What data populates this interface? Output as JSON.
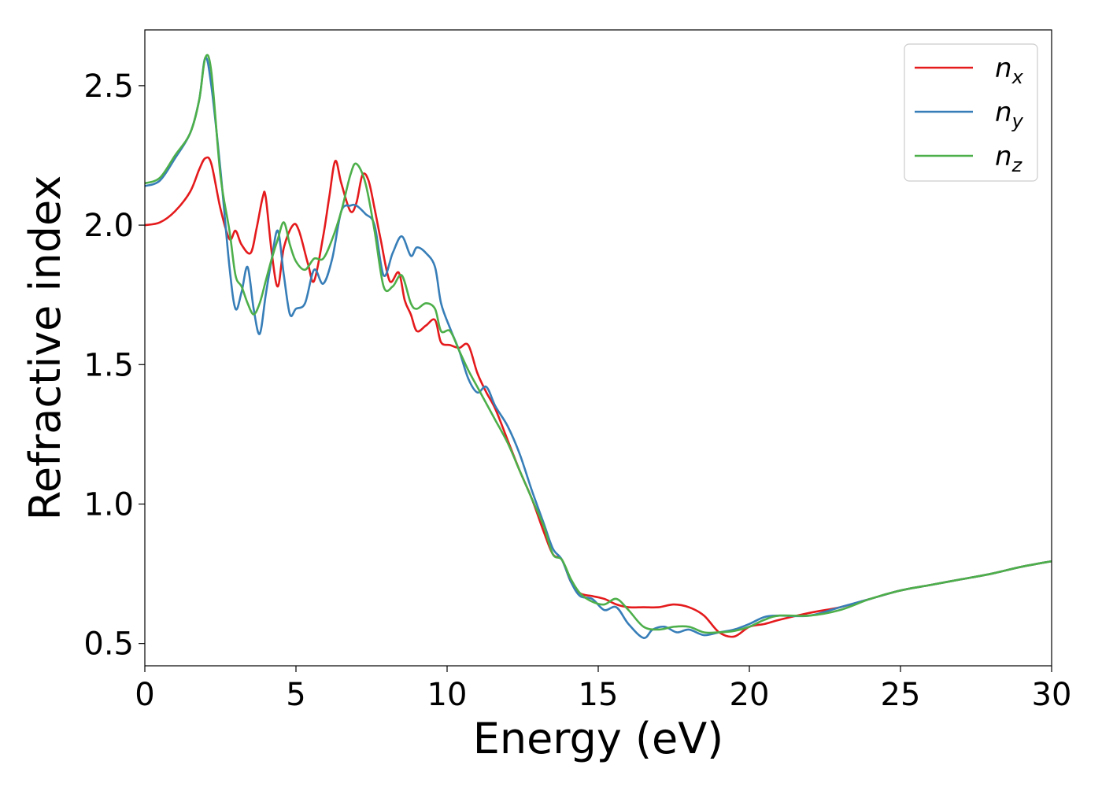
{
  "chart_data": {
    "type": "line",
    "xlabel": "Energy (eV)",
    "ylabel": "Refractive index",
    "xlim": [
      0,
      30
    ],
    "ylim": [
      0.42,
      2.7
    ],
    "xticks": [
      0,
      5,
      10,
      15,
      20,
      25,
      30
    ],
    "yticks": [
      0.5,
      1.0,
      1.5,
      2.0,
      2.5
    ],
    "xtick_labels": [
      "0",
      "5",
      "10",
      "15",
      "20",
      "25",
      "30"
    ],
    "ytick_labels": [
      "0.5",
      "1.0",
      "1.5",
      "2.0",
      "2.5"
    ],
    "grid": false,
    "legend_position": "top-right",
    "series": [
      {
        "name": "n",
        "subscript": "x",
        "color": "#e41a1c",
        "x": [
          0,
          0.5,
          1.0,
          1.5,
          1.8,
          2.0,
          2.2,
          2.5,
          2.8,
          3.0,
          3.2,
          3.5,
          3.7,
          3.9,
          4.0,
          4.2,
          4.4,
          4.6,
          4.9,
          5.1,
          5.4,
          5.6,
          5.9,
          6.1,
          6.3,
          6.5,
          6.8,
          7.0,
          7.2,
          7.4,
          7.6,
          7.8,
          8.1,
          8.4,
          8.6,
          8.8,
          9.0,
          9.3,
          9.6,
          9.8,
          10.1,
          10.4,
          10.7,
          11.0,
          11.3,
          11.6,
          12.0,
          12.4,
          12.8,
          13.2,
          13.5,
          13.8,
          14.1,
          14.4,
          14.8,
          15.2,
          15.6,
          16.0,
          16.5,
          17.0,
          17.5,
          18.0,
          18.5,
          19.0,
          19.5,
          20.0,
          20.5,
          21.0,
          22.0,
          23.0,
          24.0,
          25.0,
          26.0,
          27.0,
          28.0,
          29.0,
          30.0
        ],
        "values": [
          2.0,
          2.01,
          2.05,
          2.12,
          2.2,
          2.24,
          2.22,
          2.06,
          1.95,
          1.98,
          1.93,
          1.9,
          1.99,
          2.1,
          2.1,
          1.9,
          1.78,
          1.92,
          2.0,
          1.98,
          1.86,
          1.8,
          1.96,
          2.1,
          2.23,
          2.15,
          2.05,
          2.08,
          2.18,
          2.16,
          2.06,
          1.95,
          1.8,
          1.83,
          1.73,
          1.68,
          1.62,
          1.64,
          1.66,
          1.58,
          1.57,
          1.56,
          1.57,
          1.47,
          1.4,
          1.34,
          1.23,
          1.12,
          1.02,
          0.9,
          0.82,
          0.8,
          0.72,
          0.68,
          0.67,
          0.66,
          0.64,
          0.63,
          0.63,
          0.63,
          0.64,
          0.63,
          0.6,
          0.54,
          0.525,
          0.56,
          0.57,
          0.585,
          0.61,
          0.63,
          0.66,
          0.69,
          0.71,
          0.73,
          0.75,
          0.775,
          0.795
        ]
      },
      {
        "name": "n",
        "subscript": "y",
        "color": "#377eb8",
        "x": [
          0,
          0.5,
          1.0,
          1.5,
          1.8,
          2.0,
          2.2,
          2.5,
          2.8,
          3.0,
          3.2,
          3.4,
          3.6,
          3.8,
          4.0,
          4.2,
          4.4,
          4.6,
          4.8,
          5.0,
          5.3,
          5.6,
          5.9,
          6.2,
          6.5,
          6.8,
          7.0,
          7.3,
          7.6,
          7.9,
          8.2,
          8.5,
          8.8,
          9.0,
          9.3,
          9.6,
          9.8,
          10.1,
          10.4,
          10.7,
          11.0,
          11.3,
          11.6,
          12.0,
          12.4,
          12.8,
          13.2,
          13.5,
          13.8,
          14.1,
          14.4,
          14.8,
          15.2,
          15.6,
          16.0,
          16.5,
          16.8,
          17.2,
          17.6,
          18.0,
          18.5,
          19.0,
          19.5,
          20.0,
          20.5,
          21.0,
          22.0,
          23.0,
          24.0,
          25.0,
          26.0,
          27.0,
          28.0,
          29.0,
          30.0
        ],
        "values": [
          2.14,
          2.16,
          2.24,
          2.33,
          2.45,
          2.6,
          2.5,
          2.2,
          1.85,
          1.7,
          1.76,
          1.85,
          1.7,
          1.61,
          1.75,
          1.88,
          1.98,
          1.82,
          1.68,
          1.7,
          1.72,
          1.84,
          1.79,
          1.88,
          2.05,
          2.07,
          2.07,
          2.04,
          2.0,
          1.82,
          1.9,
          1.96,
          1.89,
          1.92,
          1.9,
          1.85,
          1.72,
          1.63,
          1.55,
          1.45,
          1.4,
          1.42,
          1.35,
          1.28,
          1.18,
          1.05,
          0.93,
          0.84,
          0.8,
          0.72,
          0.67,
          0.66,
          0.62,
          0.63,
          0.57,
          0.52,
          0.55,
          0.56,
          0.54,
          0.55,
          0.53,
          0.54,
          0.55,
          0.57,
          0.595,
          0.6,
          0.6,
          0.63,
          0.66,
          0.69,
          0.71,
          0.73,
          0.75,
          0.775,
          0.795
        ]
      },
      {
        "name": "n",
        "subscript": "z",
        "color": "#4daf4a",
        "x": [
          0,
          0.5,
          1.0,
          1.5,
          1.8,
          2.0,
          2.2,
          2.5,
          2.8,
          3.0,
          3.2,
          3.4,
          3.6,
          3.8,
          4.0,
          4.2,
          4.4,
          4.6,
          4.8,
          5.0,
          5.3,
          5.6,
          5.9,
          6.2,
          6.5,
          6.8,
          7.0,
          7.3,
          7.6,
          7.9,
          8.2,
          8.5,
          8.8,
          9.0,
          9.3,
          9.6,
          9.8,
          10.1,
          10.4,
          10.7,
          11.0,
          11.3,
          11.6,
          12.0,
          12.4,
          12.8,
          13.2,
          13.5,
          13.8,
          14.1,
          14.4,
          14.8,
          15.2,
          15.6,
          16.0,
          16.5,
          17.0,
          17.5,
          18.0,
          18.5,
          19.0,
          19.5,
          20.0,
          20.5,
          21.0,
          22.0,
          23.0,
          24.0,
          25.0,
          26.0,
          27.0,
          28.0,
          29.0,
          30.0
        ],
        "values": [
          2.15,
          2.17,
          2.25,
          2.33,
          2.45,
          2.6,
          2.55,
          2.18,
          1.98,
          1.82,
          1.78,
          1.72,
          1.68,
          1.72,
          1.8,
          1.88,
          1.95,
          2.01,
          1.93,
          1.87,
          1.84,
          1.88,
          1.88,
          1.95,
          2.05,
          2.18,
          2.22,
          2.15,
          1.98,
          1.78,
          1.78,
          1.82,
          1.72,
          1.7,
          1.72,
          1.7,
          1.62,
          1.62,
          1.55,
          1.48,
          1.42,
          1.36,
          1.3,
          1.22,
          1.12,
          1.02,
          0.92,
          0.82,
          0.8,
          0.73,
          0.68,
          0.65,
          0.64,
          0.66,
          0.62,
          0.56,
          0.55,
          0.56,
          0.56,
          0.54,
          0.54,
          0.545,
          0.56,
          0.585,
          0.6,
          0.6,
          0.62,
          0.66,
          0.69,
          0.71,
          0.73,
          0.75,
          0.775,
          0.795
        ]
      }
    ]
  }
}
